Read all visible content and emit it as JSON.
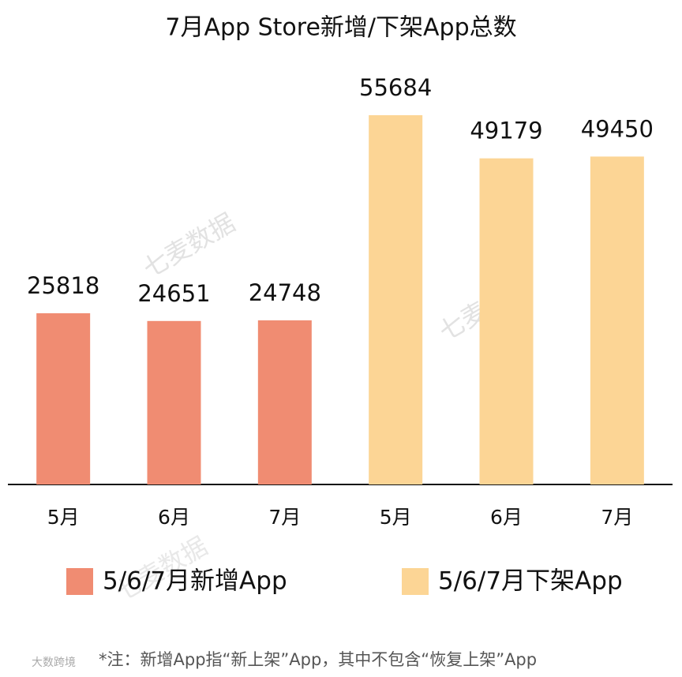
{
  "chart_data": {
    "type": "bar",
    "title": "7月App Store新增/下架App总数",
    "categories": [
      "5月",
      "6月",
      "7月",
      "5月",
      "6月",
      "7月"
    ],
    "series": [
      {
        "name": "5/6/7月新增App",
        "color": "#f08c72",
        "values": [
          25818,
          24651,
          24748,
          null,
          null,
          null
        ]
      },
      {
        "name": "5/6/7月下架App",
        "color": "#fcd595",
        "values": [
          null,
          null,
          null,
          55684,
          49179,
          49450
        ]
      }
    ],
    "note": "*注：新增App指“新上架”App，其中不包含“恢复上架”App",
    "watermark": "七麦数据",
    "logo": "大数跨境"
  }
}
